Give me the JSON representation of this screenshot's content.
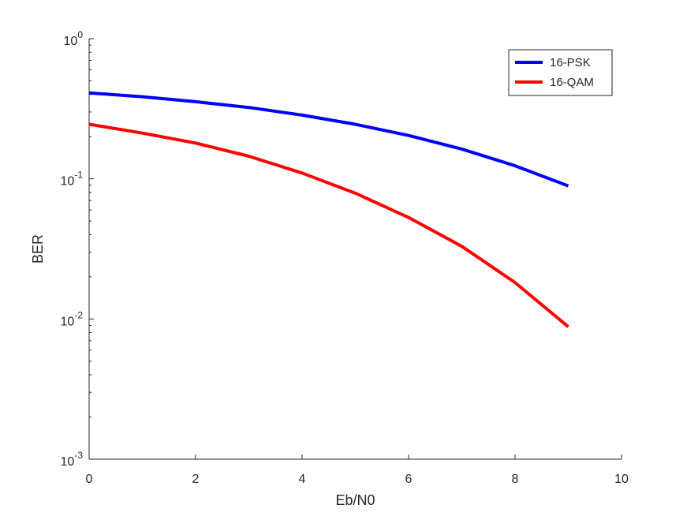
{
  "chart_data": {
    "type": "line",
    "xlabel": "Eb/N0",
    "ylabel": "BER",
    "xlim": [
      0,
      10
    ],
    "ylim": [
      0.001,
      1
    ],
    "yscale": "log",
    "grid": false,
    "legend_position": "top-right",
    "x_ticks": [
      {
        "value": 0,
        "label": "0"
      },
      {
        "value": 2,
        "label": "2"
      },
      {
        "value": 4,
        "label": "4"
      },
      {
        "value": 6,
        "label": "6"
      },
      {
        "value": 8,
        "label": "8"
      },
      {
        "value": 10,
        "label": "10"
      }
    ],
    "y_ticks": [
      {
        "value": 1,
        "base": "10",
        "exp": "0"
      },
      {
        "value": 0.1,
        "base": "10",
        "exp": "-1"
      },
      {
        "value": 0.01,
        "base": "10",
        "exp": "-2"
      },
      {
        "value": 0.001,
        "base": "10",
        "exp": "-3"
      }
    ],
    "x": [
      0,
      1,
      2,
      3,
      4,
      5,
      6,
      7,
      8,
      9
    ],
    "series": [
      {
        "name": "16-PSK",
        "color": "#0000ff",
        "values": [
          0.41,
          0.385,
          0.355,
          0.323,
          0.285,
          0.245,
          0.204,
          0.163,
          0.124,
          0.089
        ]
      },
      {
        "name": "16-QAM",
        "color": "#ff0000",
        "values": [
          0.245,
          0.212,
          0.18,
          0.145,
          0.11,
          0.079,
          0.053,
          0.033,
          0.0182,
          0.0088
        ]
      }
    ]
  }
}
